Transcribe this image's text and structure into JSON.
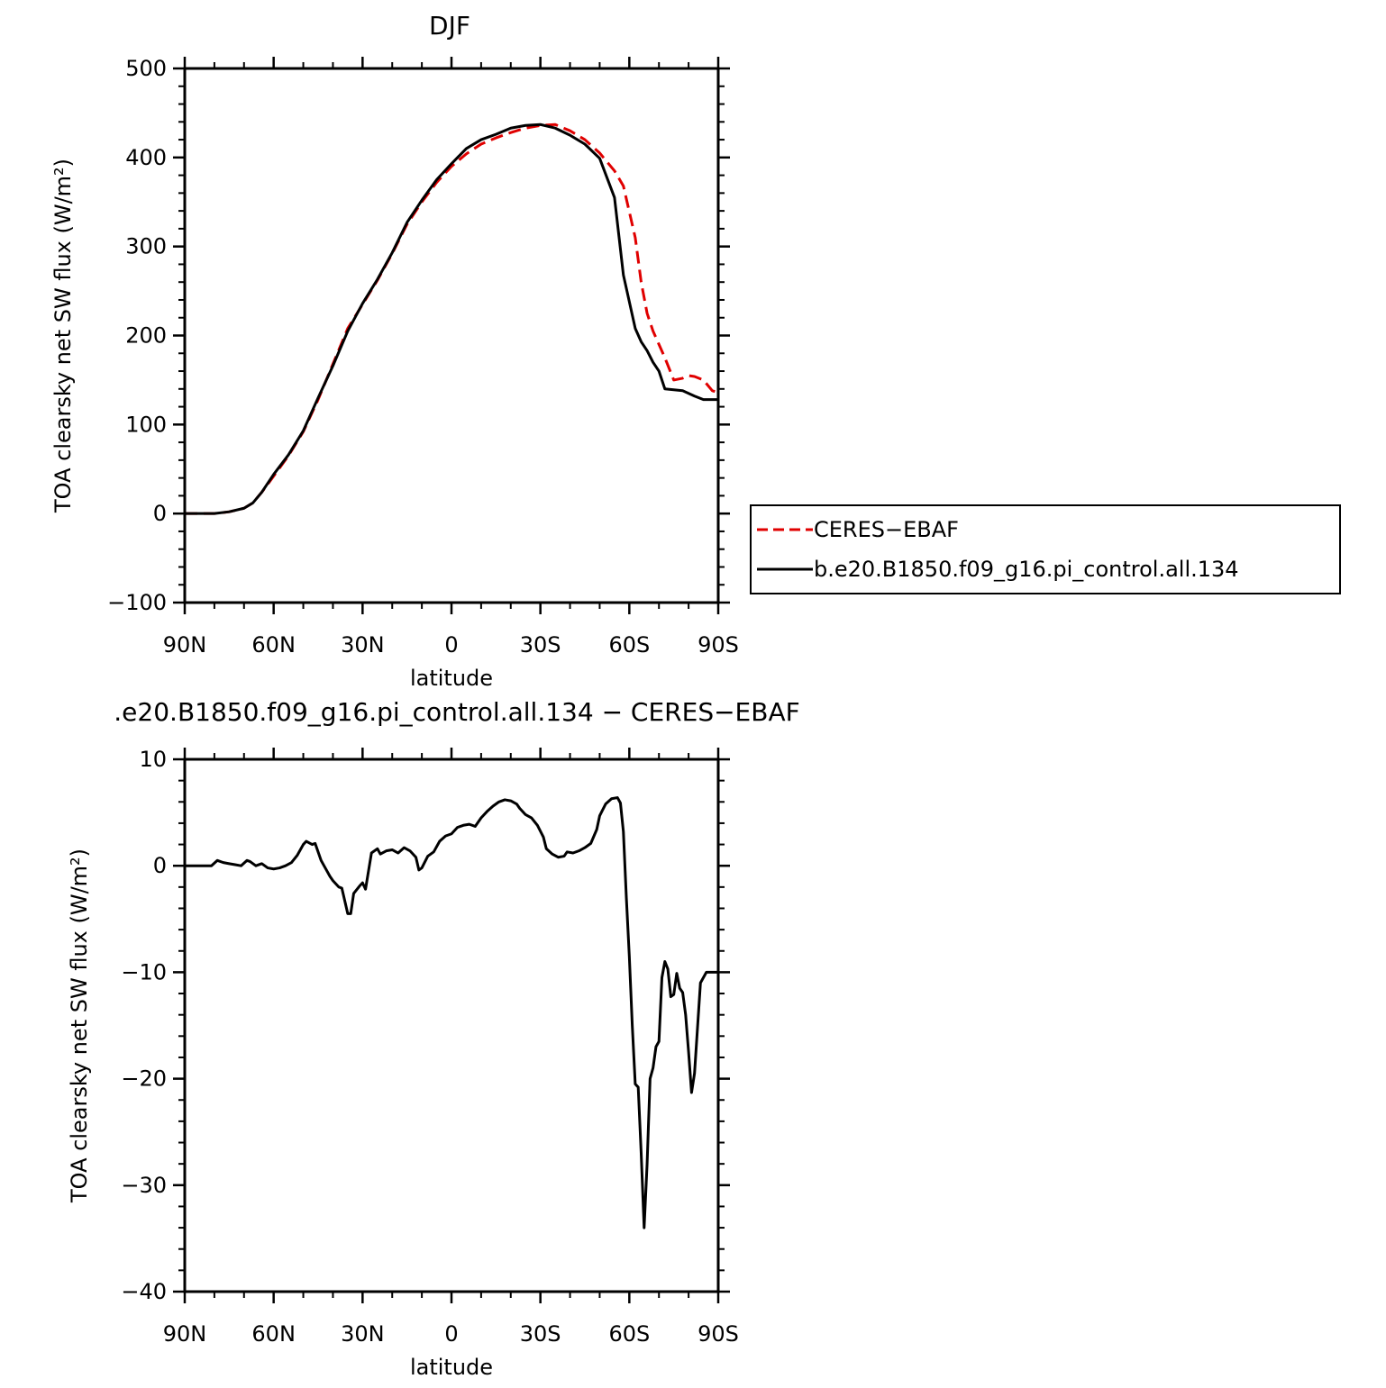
{
  "chart_data": [
    {
      "type": "line",
      "title": "DJF",
      "xlabel": "latitude",
      "ylabel": "TOA clearsky net SW flux (W/m²)",
      "xlim": [
        90,
        -90
      ],
      "ylim": [
        -100,
        500
      ],
      "xticks": [
        90,
        60,
        30,
        0,
        -30,
        -60,
        -90
      ],
      "xtick_labels": [
        "90N",
        "60N",
        "30N",
        "0",
        "30S",
        "60S",
        "90S"
      ],
      "yticks": [
        -100,
        0,
        100,
        200,
        300,
        400,
        500
      ],
      "ytick_labels": [
        "−100",
        "0",
        "100",
        "200",
        "300",
        "400",
        "500"
      ],
      "grid": false,
      "legend_position": "right",
      "series": [
        {
          "name": "CERES−EBAF",
          "color": "#e00000",
          "dash": "dashed",
          "x": [
            90,
            85,
            80,
            75,
            70,
            67,
            64,
            60,
            55,
            50,
            45,
            40,
            35,
            30,
            25,
            20,
            15,
            10,
            5,
            0,
            -5,
            -10,
            -15,
            -20,
            -25,
            -30,
            -35,
            -40,
            -45,
            -50,
            -55,
            -58,
            -62,
            -64,
            -66,
            -68,
            -70,
            -72,
            -75,
            -78,
            -80,
            -82,
            -85,
            -88,
            -90
          ],
          "y": [
            0,
            0,
            0,
            2,
            6,
            12,
            24,
            42,
            65,
            92,
            128,
            168,
            208,
            235,
            262,
            292,
            325,
            350,
            372,
            390,
            404,
            415,
            422,
            428,
            433,
            436,
            437,
            430,
            420,
            405,
            385,
            368,
            310,
            260,
            225,
            205,
            190,
            175,
            150,
            152,
            155,
            154,
            150,
            138,
            136
          ]
        },
        {
          "name": "b.e20.B1850.f09_g16.pi_control.all.134",
          "color": "#000000",
          "dash": "solid",
          "x": [
            90,
            85,
            80,
            75,
            70,
            67,
            64,
            60,
            55,
            50,
            45,
            40,
            35,
            30,
            25,
            20,
            15,
            10,
            5,
            0,
            -5,
            -10,
            -15,
            -20,
            -25,
            -30,
            -35,
            -40,
            -45,
            -50,
            -55,
            -58,
            -62,
            -64,
            -66,
            -68,
            -70,
            -72,
            -75,
            -78,
            -80,
            -82,
            -85,
            -88,
            -90
          ],
          "y": [
            0,
            0,
            0,
            2,
            6,
            12,
            24,
            44,
            66,
            93,
            130,
            166,
            205,
            236,
            263,
            293,
            327,
            352,
            375,
            393,
            410,
            420,
            426,
            433,
            436,
            437,
            433,
            425,
            415,
            399,
            355,
            268,
            208,
            193,
            183,
            170,
            160,
            140,
            139,
            138,
            135,
            132,
            128,
            128,
            128
          ]
        }
      ]
    },
    {
      "type": "line",
      "title": ".e20.B1850.f09_g16.pi_control.all.134 − CERES−EBAF",
      "xlabel": "latitude",
      "ylabel": "TOA clearsky net SW flux (W/m²)",
      "xlim": [
        90,
        -90
      ],
      "ylim": [
        -40,
        10
      ],
      "xticks": [
        90,
        60,
        30,
        0,
        -30,
        -60,
        -90
      ],
      "xtick_labels": [
        "90N",
        "60N",
        "30N",
        "0",
        "30S",
        "60S",
        "90S"
      ],
      "yticks": [
        -40,
        -30,
        -20,
        -10,
        0,
        10
      ],
      "ytick_labels": [
        "−40",
        "−30",
        "−20",
        "−10",
        "0",
        "10"
      ],
      "grid": false,
      "series": [
        {
          "name": "",
          "color": "#000000",
          "dash": "solid",
          "x": [
            90,
            86,
            83,
            81,
            79,
            77,
            75,
            73,
            71,
            69,
            68,
            66,
            64,
            62,
            60,
            58,
            56,
            54,
            52,
            50,
            49,
            47,
            46,
            44,
            43,
            41,
            40,
            38,
            37,
            35,
            34,
            33,
            31,
            30,
            29,
            27,
            25,
            24,
            22,
            20,
            18,
            16,
            14,
            12,
            11,
            10,
            8,
            6,
            4,
            2,
            0,
            -2,
            -4,
            -6,
            -8,
            -10,
            -12,
            -14,
            -16,
            -18,
            -20,
            -22,
            -23,
            -25,
            -27,
            -29,
            -31,
            -32,
            -34,
            -36,
            -38,
            -39,
            -41,
            -43,
            -45,
            -47,
            -49,
            -50,
            -52,
            -54,
            -56,
            -57,
            -58,
            -59,
            -60,
            -61,
            -62,
            -63,
            -64,
            -65,
            -66,
            -67,
            -68,
            -69,
            -70,
            -71,
            -72,
            -73,
            -74,
            -75,
            -76,
            -77,
            -78,
            -79,
            -80,
            -81,
            -82,
            -84,
            -86,
            -87,
            -88,
            -89,
            -90
          ],
          "y": [
            0,
            0,
            0,
            0,
            0.5,
            0.3,
            0.2,
            0.1,
            0,
            0.5,
            0.4,
            0,
            0.2,
            -0.2,
            -0.3,
            -0.2,
            0,
            0.3,
            1,
            2,
            2.3,
            2,
            2.1,
            0.5,
            0,
            -1,
            -1.4,
            -2,
            -2.1,
            -4.5,
            -4.5,
            -2.6,
            -1.9,
            -1.6,
            -2.2,
            1.2,
            1.6,
            1.1,
            1.4,
            1.5,
            1.2,
            1.7,
            1.4,
            0.8,
            -0.4,
            -0.2,
            0.9,
            1.3,
            2.3,
            2.8,
            3,
            3.6,
            3.8,
            3.9,
            3.7,
            4.5,
            5.1,
            5.6,
            6,
            6.2,
            6.1,
            5.8,
            5.4,
            4.8,
            4.5,
            3.8,
            2.7,
            1.6,
            1.1,
            0.8,
            0.9,
            1.3,
            1.2,
            1.4,
            1.7,
            2.1,
            3.4,
            4.7,
            5.8,
            6.3,
            6.4,
            5.9,
            3.2,
            -3,
            -8.5,
            -15,
            -20.5,
            -20.8,
            -27,
            -34,
            -28,
            -20,
            -19,
            -17,
            -16.5,
            -10.5,
            -9,
            -9.7,
            -12.3,
            -12.1,
            -10.1,
            -11.5,
            -11.9,
            -14,
            -17.5,
            -21.3,
            -19.5,
            -11,
            -10,
            -10,
            -10,
            -10,
            -10
          ]
        }
      ]
    }
  ]
}
